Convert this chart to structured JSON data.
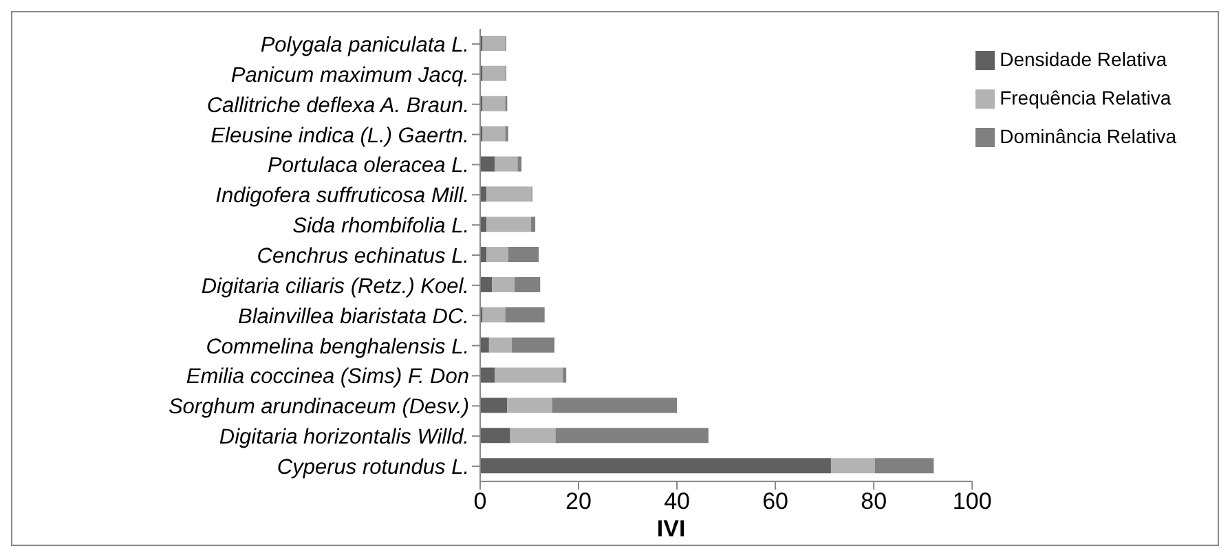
{
  "chart_data": {
    "type": "bar",
    "orientation": "horizontal",
    "stacked": true,
    "xlabel": "IVI",
    "categories": [
      "Polygala paniculata L.",
      "Panicum maximum Jacq.",
      "Callitriche deflexa A. Braun.",
      "Eleusine indica (L.) Gaertn.",
      "Portulaca oleracea L.",
      "Indigofera suffruticosa Mill.",
      "Sida rhombifolia L.",
      "Cenchrus echinatus L.",
      "Digitaria ciliaris (Retz.) Koel.",
      "Blainvillea biaristata DC.",
      "Commelina benghalensis L.",
      "Emilia coccinea (Sims) F. Don",
      "Sorghum arundinaceum (Desv.)",
      "Digitaria horizontalis Willd.",
      "Cyperus rotundus L."
    ],
    "series": [
      {
        "name": "Densidade Relativa",
        "color": "#606060",
        "values": [
          0.5,
          0.5,
          0.5,
          0.5,
          3.0,
          1.3,
          1.3,
          1.3,
          2.4,
          0.5,
          1.8,
          3.0,
          5.5,
          6.1,
          71.3
        ]
      },
      {
        "name": "Frequência Relativa",
        "color": "#b3b3b3",
        "values": [
          4.6,
          4.6,
          4.6,
          4.6,
          4.6,
          9.1,
          9.0,
          4.4,
          4.6,
          4.6,
          4.6,
          13.8,
          9.1,
          9.2,
          8.9
        ]
      },
      {
        "name": "Dominância Relativa",
        "color": "#808080",
        "values": [
          0.2,
          0.2,
          0.4,
          0.6,
          0.8,
          0.2,
          0.9,
          6.2,
          5.2,
          8.0,
          8.7,
          0.7,
          25.4,
          31.1,
          12.0
        ]
      }
    ],
    "xlim": [
      0,
      100
    ],
    "xticks": [
      0,
      20,
      40,
      60,
      80,
      100
    ],
    "legend": "top right"
  }
}
